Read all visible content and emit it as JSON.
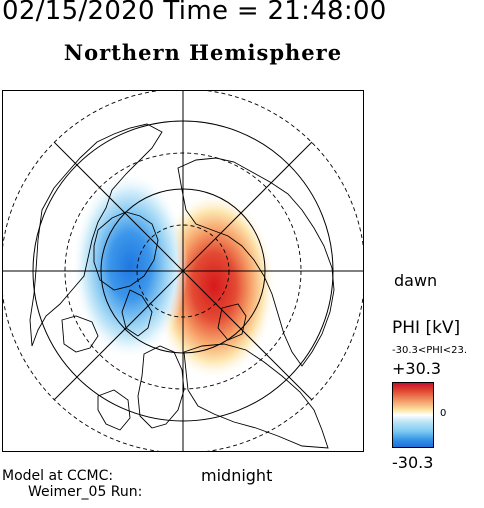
{
  "header": {
    "datetime": "02/15/2020 Time = 21:48:00",
    "title": "Northern Hemisphere"
  },
  "map": {
    "labels": {
      "dawn": "dawn",
      "midnight": "midnight"
    },
    "colors": {
      "positive": "#d7191c",
      "negative": "#2b83e6",
      "grid": "#000000"
    }
  },
  "model": {
    "line1": "Model at CCMC:",
    "line2": "Weimer_05 Run:"
  },
  "colorbar": {
    "title": "PHI [kV]",
    "range_text": "-30.3<PHI<23.",
    "max_label": "+30.3",
    "min_label": "-30.3",
    "zero_label": "0",
    "max_value": 30.3,
    "min_value": -30.3
  }
}
